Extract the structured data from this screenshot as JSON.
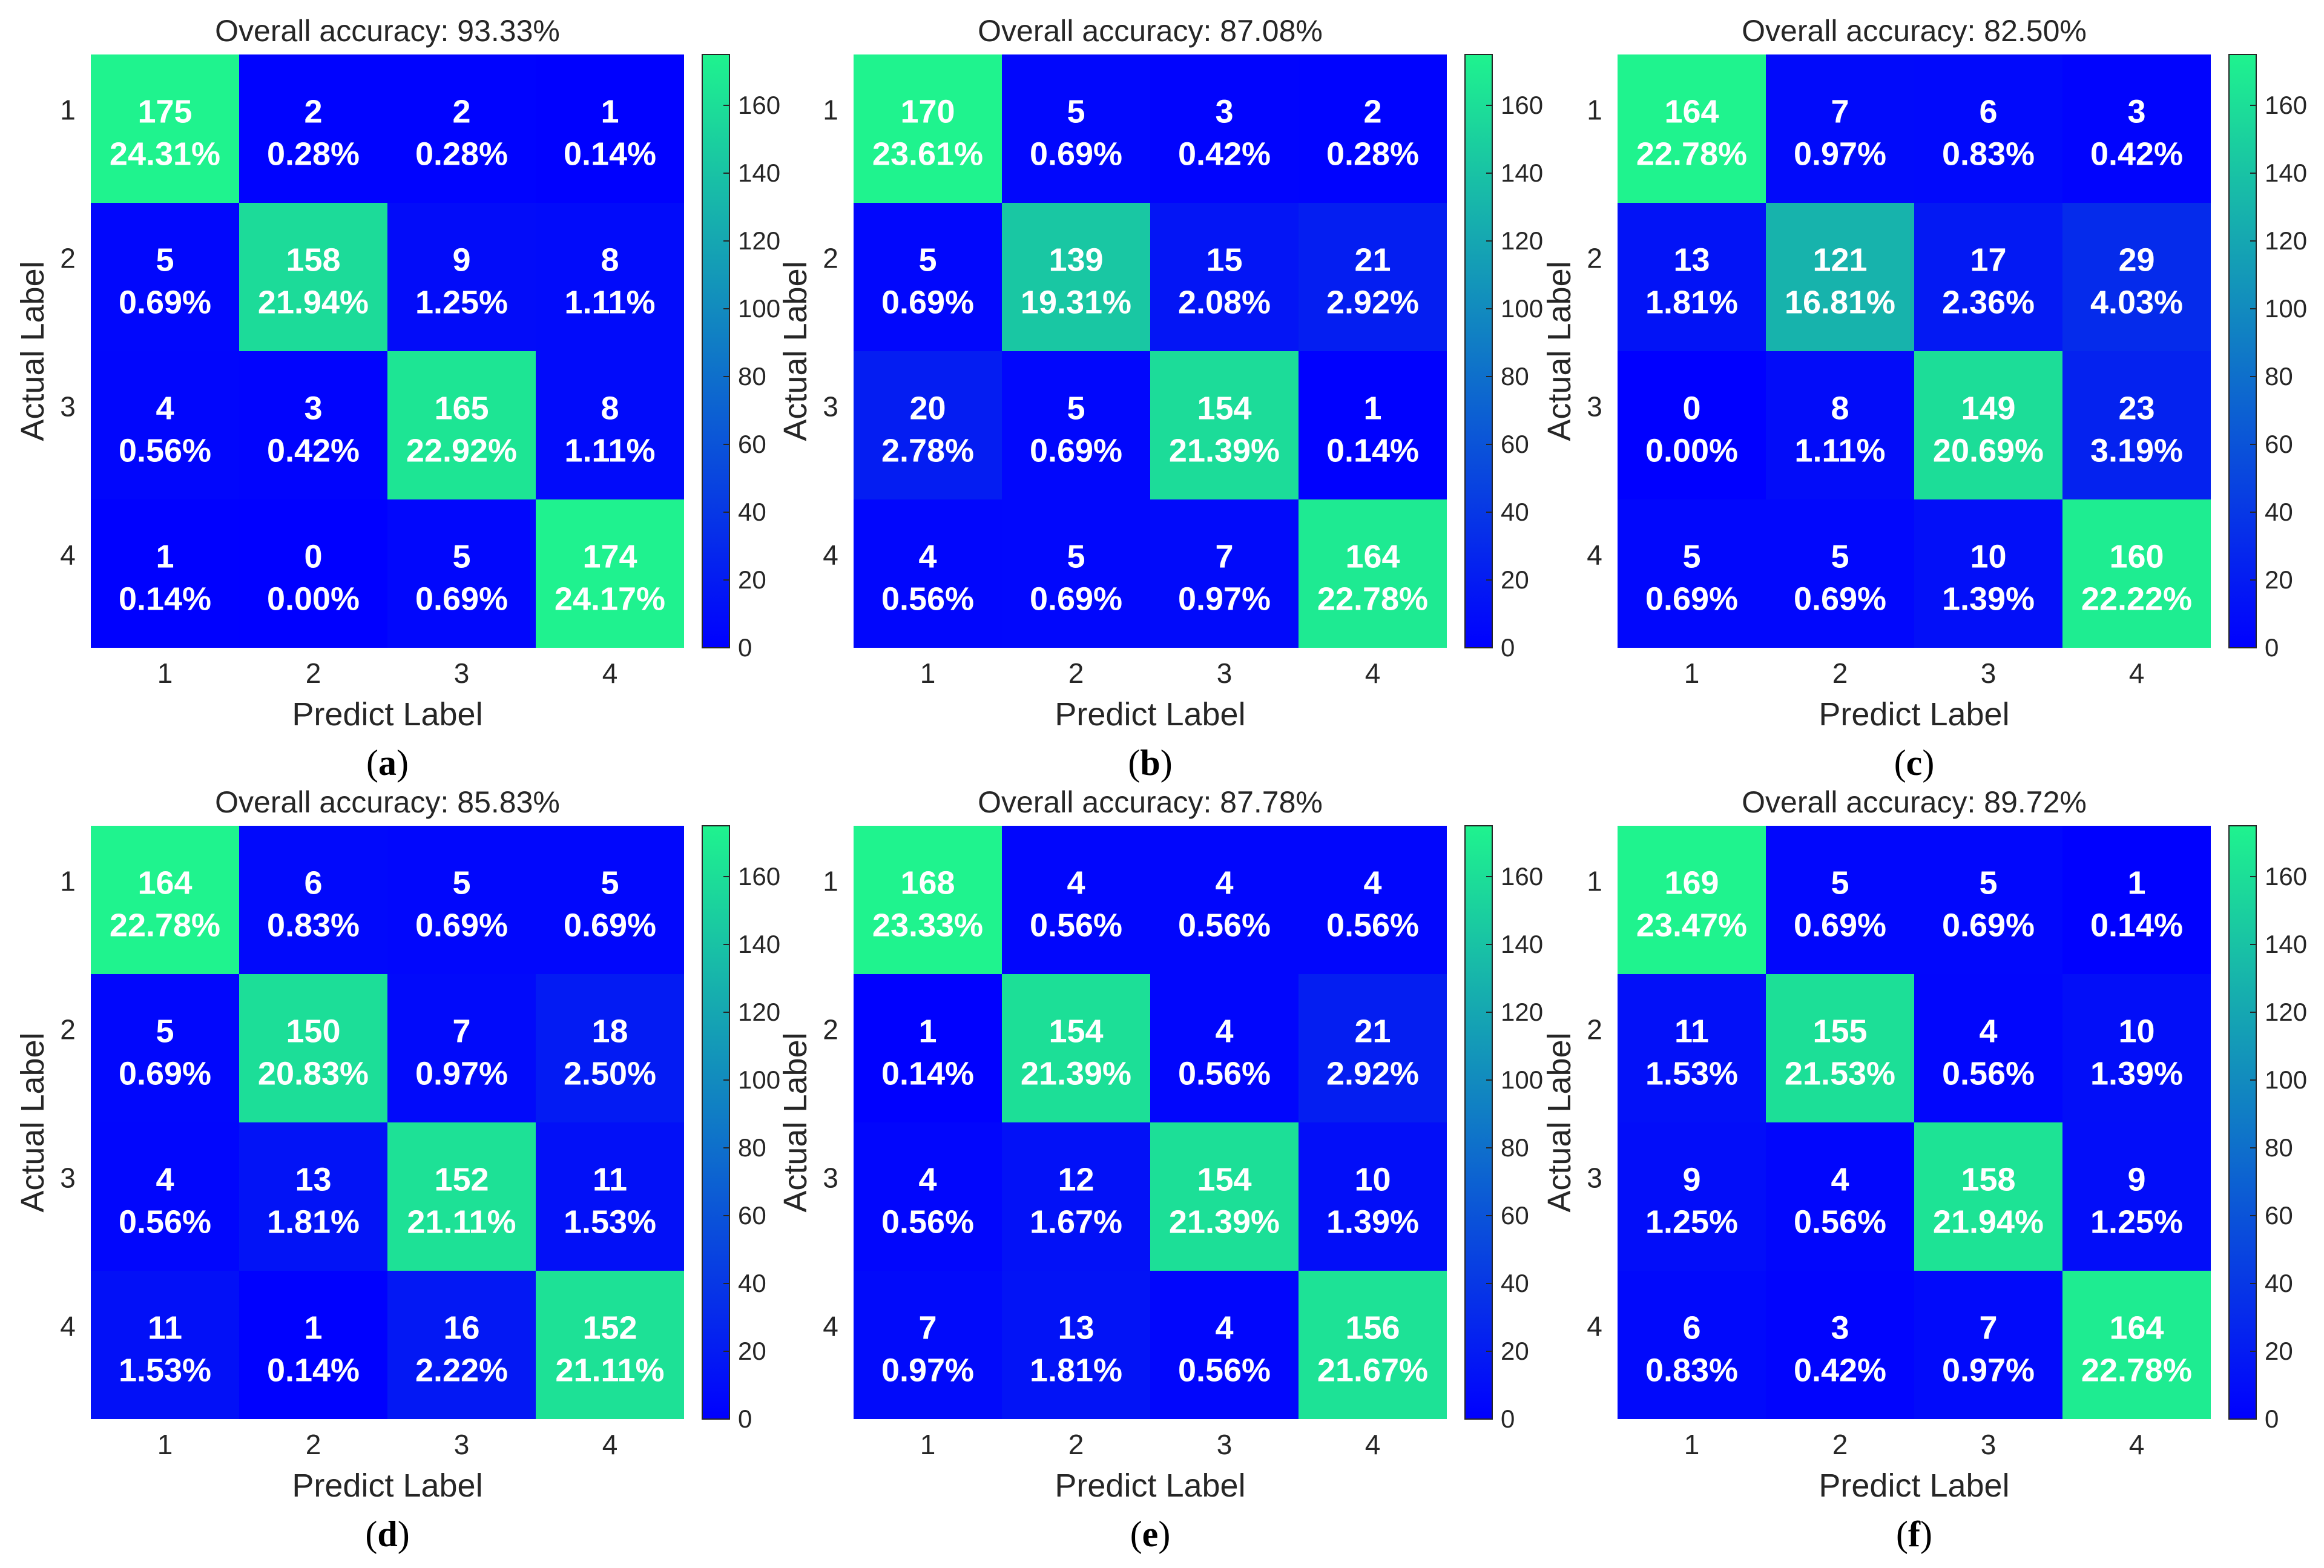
{
  "chart_data": [
    {
      "type": "heatmap",
      "panel_label": "(a)",
      "title": "Overall accuracy: 93.33%",
      "xlabel": "Predict Label",
      "ylabel": "Actual Label",
      "x_ticks": [
        "1",
        "2",
        "3",
        "4"
      ],
      "y_ticks": [
        "1",
        "2",
        "3",
        "4"
      ],
      "counts": [
        [
          175,
          2,
          2,
          1
        ],
        [
          5,
          158,
          9,
          8
        ],
        [
          4,
          3,
          165,
          8
        ],
        [
          1,
          0,
          5,
          174
        ]
      ],
      "percentages": [
        [
          "24.31%",
          "0.28%",
          "0.28%",
          "0.14%"
        ],
        [
          "0.69%",
          "21.94%",
          "1.25%",
          "1.11%"
        ],
        [
          "0.56%",
          "0.42%",
          "22.92%",
          "1.11%"
        ],
        [
          "0.14%",
          "0.00%",
          "0.69%",
          "24.17%"
        ]
      ],
      "colorbar_ticks": [
        0,
        20,
        40,
        60,
        80,
        100,
        120,
        140,
        160
      ],
      "color_range": [
        0,
        175
      ]
    },
    {
      "type": "heatmap",
      "panel_label": "(b)",
      "title": "Overall accuracy: 87.08%",
      "xlabel": "Predict Label",
      "ylabel": "Actual Label",
      "x_ticks": [
        "1",
        "2",
        "3",
        "4"
      ],
      "y_ticks": [
        "1",
        "2",
        "3",
        "4"
      ],
      "counts": [
        [
          170,
          5,
          3,
          2
        ],
        [
          5,
          139,
          15,
          21
        ],
        [
          20,
          5,
          154,
          1
        ],
        [
          4,
          5,
          7,
          164
        ]
      ],
      "percentages": [
        [
          "23.61%",
          "0.69%",
          "0.42%",
          "0.28%"
        ],
        [
          "0.69%",
          "19.31%",
          "2.08%",
          "2.92%"
        ],
        [
          "2.78%",
          "0.69%",
          "21.39%",
          "0.14%"
        ],
        [
          "0.56%",
          "0.69%",
          "0.97%",
          "22.78%"
        ]
      ],
      "colorbar_ticks": [
        0,
        20,
        40,
        60,
        80,
        100,
        120,
        140,
        160
      ],
      "color_range": [
        0,
        170
      ]
    },
    {
      "type": "heatmap",
      "panel_label": "(c)",
      "title": "Overall accuracy: 82.50%",
      "xlabel": "Predict Label",
      "ylabel": "Actual Label",
      "x_ticks": [
        "1",
        "2",
        "3",
        "4"
      ],
      "y_ticks": [
        "1",
        "2",
        "3",
        "4"
      ],
      "counts": [
        [
          164,
          7,
          6,
          3
        ],
        [
          13,
          121,
          17,
          29
        ],
        [
          0,
          8,
          149,
          23
        ],
        [
          5,
          5,
          10,
          160
        ]
      ],
      "percentages": [
        [
          "22.78%",
          "0.97%",
          "0.83%",
          "0.42%"
        ],
        [
          "1.81%",
          "16.81%",
          "2.36%",
          "4.03%"
        ],
        [
          "0.00%",
          "1.11%",
          "20.69%",
          "3.19%"
        ],
        [
          "0.69%",
          "0.69%",
          "1.39%",
          "22.22%"
        ]
      ],
      "colorbar_ticks": [
        0,
        20,
        40,
        60,
        80,
        100,
        120,
        140,
        160
      ],
      "color_range": [
        0,
        164
      ]
    },
    {
      "type": "heatmap",
      "panel_label": "(d)",
      "title": "Overall accuracy: 85.83%",
      "xlabel": "Predict Label",
      "ylabel": "Actual Label",
      "x_ticks": [
        "1",
        "2",
        "3",
        "4"
      ],
      "y_ticks": [
        "1",
        "2",
        "3",
        "4"
      ],
      "counts": [
        [
          164,
          6,
          5,
          5
        ],
        [
          5,
          150,
          7,
          18
        ],
        [
          4,
          13,
          152,
          11
        ],
        [
          11,
          1,
          16,
          152
        ]
      ],
      "percentages": [
        [
          "22.78%",
          "0.83%",
          "0.69%",
          "0.69%"
        ],
        [
          "0.69%",
          "20.83%",
          "0.97%",
          "2.50%"
        ],
        [
          "0.56%",
          "1.81%",
          "21.11%",
          "1.53%"
        ],
        [
          "1.53%",
          "0.14%",
          "2.22%",
          "21.11%"
        ]
      ],
      "colorbar_ticks": [
        0,
        20,
        40,
        60,
        80,
        100,
        120,
        140,
        160
      ],
      "color_range": [
        0,
        164
      ]
    },
    {
      "type": "heatmap",
      "panel_label": "(e)",
      "title": "Overall accuracy: 87.78%",
      "xlabel": "Predict Label",
      "ylabel": "Actual Label",
      "x_ticks": [
        "1",
        "2",
        "3",
        "4"
      ],
      "y_ticks": [
        "1",
        "2",
        "3",
        "4"
      ],
      "counts": [
        [
          168,
          4,
          4,
          4
        ],
        [
          1,
          154,
          4,
          21
        ],
        [
          4,
          12,
          154,
          10
        ],
        [
          7,
          13,
          4,
          156
        ]
      ],
      "percentages": [
        [
          "23.33%",
          "0.56%",
          "0.56%",
          "0.56%"
        ],
        [
          "0.14%",
          "21.39%",
          "0.56%",
          "2.92%"
        ],
        [
          "0.56%",
          "1.67%",
          "21.39%",
          "1.39%"
        ],
        [
          "0.97%",
          "1.81%",
          "0.56%",
          "21.67%"
        ]
      ],
      "colorbar_ticks": [
        0,
        20,
        40,
        60,
        80,
        100,
        120,
        140,
        160
      ],
      "color_range": [
        0,
        168
      ]
    },
    {
      "type": "heatmap",
      "panel_label": "(f)",
      "title": "Overall accuracy: 89.72%",
      "xlabel": "Predict Label",
      "ylabel": "Actual Label",
      "x_ticks": [
        "1",
        "2",
        "3",
        "4"
      ],
      "y_ticks": [
        "1",
        "2",
        "3",
        "4"
      ],
      "counts": [
        [
          169,
          5,
          5,
          1
        ],
        [
          11,
          155,
          4,
          10
        ],
        [
          9,
          4,
          158,
          9
        ],
        [
          6,
          3,
          7,
          164
        ]
      ],
      "percentages": [
        [
          "23.47%",
          "0.69%",
          "0.69%",
          "0.14%"
        ],
        [
          "1.53%",
          "21.53%",
          "0.56%",
          "1.39%"
        ],
        [
          "1.25%",
          "0.56%",
          "21.94%",
          "1.25%"
        ],
        [
          "0.83%",
          "0.42%",
          "0.97%",
          "22.78%"
        ]
      ],
      "colorbar_ticks": [
        0,
        20,
        40,
        60,
        80,
        100,
        120,
        140,
        160
      ],
      "color_range": [
        0,
        169
      ]
    }
  ],
  "colors": {
    "low": "#0000ff",
    "high": "#1ff38e",
    "text": "#ffffff"
  }
}
